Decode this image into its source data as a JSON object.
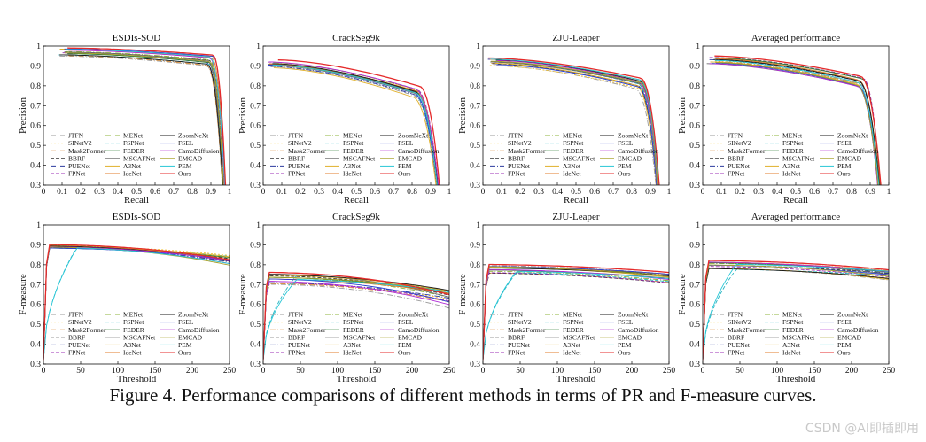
{
  "caption": "Figure 4. Performance comparisons of different methods in terms of PR and F-measure curves.",
  "watermark": "CSDN @AI即插即用",
  "methods": [
    {
      "name": "JTFN",
      "color": "#9a9a9a",
      "dash": "6,2,1,2"
    },
    {
      "name": "SINetV2",
      "color": "#f2c12e",
      "dash": "2,2"
    },
    {
      "name": "Mask2Former",
      "color": "#d98e3a",
      "dash": "6,2,1,2"
    },
    {
      "name": "BBRF",
      "color": "#333333",
      "dash": "4,2"
    },
    {
      "name": "PUENet",
      "color": "#2b3a9f",
      "dash": "6,2,1,2"
    },
    {
      "name": "FPNet",
      "color": "#9b2cb4",
      "dash": "4,2"
    },
    {
      "name": "MENet",
      "color": "#8db33a",
      "dash": "6,2,1,2"
    },
    {
      "name": "FSPNet",
      "color": "#26b5c2",
      "dash": "4,2"
    },
    {
      "name": "FEDER",
      "color": "#2e7d32",
      "dash": ""
    },
    {
      "name": "MSCAFNet",
      "color": "#6b6b6b",
      "dash": ""
    },
    {
      "name": "A3Net",
      "color": "#e0b02a",
      "dash": ""
    },
    {
      "name": "IdeNet",
      "color": "#e07b2a",
      "dash": ""
    },
    {
      "name": "ZoomNeXt",
      "color": "#1a1a1a",
      "dash": ""
    },
    {
      "name": "FSEL",
      "color": "#2b3fd1",
      "dash": ""
    },
    {
      "name": "CamoDiffusion",
      "color": "#b12bd6",
      "dash": ""
    },
    {
      "name": "EMCAD",
      "color": "#a8a12a",
      "dash": ""
    },
    {
      "name": "PEM",
      "color": "#27c6d6",
      "dash": ""
    },
    {
      "name": "Ours",
      "color": "#e52a2a",
      "dash": ""
    }
  ],
  "chart_data": [
    {
      "type": "line",
      "kind": "pr",
      "title": "ESDIs-SOD",
      "xlabel": "Recall",
      "ylabel": "Precision",
      "xlim": [
        0,
        1
      ],
      "ylim": [
        0.3,
        1
      ],
      "xticks": [
        "0",
        "0.1",
        "0.2",
        "0.3",
        "0.4",
        "0.5",
        "0.6",
        "0.7",
        "0.8",
        "0.9",
        "1"
      ],
      "yticks": [
        "0.3",
        "0.4",
        "0.5",
        "0.6",
        "0.7",
        "0.8",
        "0.9",
        "1"
      ],
      "p0": 0.99,
      "p1": 0.955,
      "knee": 0.9,
      "end": 0.98
    },
    {
      "type": "line",
      "kind": "pr",
      "title": "CrackSeg9k",
      "xlabel": "Recall",
      "ylabel": "Precision",
      "xlim": [
        0,
        1
      ],
      "ylim": [
        0.3,
        1
      ],
      "xticks": [
        "0",
        "0.1",
        "0.2",
        "0.3",
        "0.4",
        "0.5",
        "0.6",
        "0.7",
        "0.8",
        "0.9",
        "1"
      ],
      "yticks": [
        "0.3",
        "0.4",
        "0.5",
        "0.6",
        "0.7",
        "0.8",
        "0.9",
        "1"
      ],
      "p0": 0.93,
      "p1": 0.8,
      "knee": 0.82,
      "end": 0.95
    },
    {
      "type": "line",
      "kind": "pr",
      "title": "ZJU-Leaper",
      "xlabel": "Recall",
      "ylabel": "Precision",
      "xlim": [
        0,
        1
      ],
      "ylim": [
        0.3,
        1
      ],
      "xticks": [
        "0",
        "0.1",
        "0.2",
        "0.3",
        "0.4",
        "0.5",
        "0.6",
        "0.7",
        "0.8",
        "0.9",
        "1"
      ],
      "yticks": [
        "0.3",
        "0.4",
        "0.5",
        "0.6",
        "0.7",
        "0.8",
        "0.9",
        "1"
      ],
      "p0": 0.94,
      "p1": 0.84,
      "knee": 0.84,
      "end": 0.95
    },
    {
      "type": "line",
      "kind": "pr",
      "title": "Averaged performance",
      "xlabel": "Recall",
      "ylabel": "Precision",
      "xlim": [
        0,
        1
      ],
      "ylim": [
        0.3,
        1
      ],
      "xticks": [
        "0",
        "0.1",
        "0.2",
        "0.3",
        "0.4",
        "0.5",
        "0.6",
        "0.7",
        "0.8",
        "0.9",
        "1"
      ],
      "yticks": [
        "0.3",
        "0.4",
        "0.5",
        "0.6",
        "0.7",
        "0.8",
        "0.9",
        "1"
      ],
      "p0": 0.95,
      "p1": 0.85,
      "knee": 0.85,
      "end": 0.96
    },
    {
      "type": "line",
      "kind": "fm",
      "title": "ESDIs-SOD",
      "xlabel": "Threshold",
      "ylabel": "F-measure",
      "xlim": [
        0,
        250
      ],
      "ylim": [
        0.3,
        1
      ],
      "xticks": [
        "0",
        "50",
        "100",
        "150",
        "200",
        "250"
      ],
      "yticks": [
        "0.3",
        "0.4",
        "0.5",
        "0.6",
        "0.7",
        "0.8",
        "0.9",
        "1"
      ],
      "plateau": 0.89,
      "spread": 0.02,
      "endDrop": 0.06
    },
    {
      "type": "line",
      "kind": "fm",
      "title": "CrackSeg9k",
      "xlabel": "Threshold",
      "ylabel": "F-measure",
      "xlim": [
        0,
        250
      ],
      "ylim": [
        0.3,
        1
      ],
      "xticks": [
        "0",
        "50",
        "100",
        "150",
        "200",
        "250"
      ],
      "yticks": [
        "0.3",
        "0.4",
        "0.5",
        "0.6",
        "0.7",
        "0.8",
        "0.9",
        "1"
      ],
      "plateau": 0.75,
      "spread": 0.07,
      "endDrop": 0.08
    },
    {
      "type": "line",
      "kind": "fm",
      "title": "ZJU-Leaper",
      "xlabel": "Threshold",
      "ylabel": "F-measure",
      "xlim": [
        0,
        250
      ],
      "ylim": [
        0.3,
        1
      ],
      "xticks": [
        "0",
        "50",
        "100",
        "150",
        "200",
        "250"
      ],
      "yticks": [
        "0.3",
        "0.4",
        "0.5",
        "0.6",
        "0.7",
        "0.8",
        "0.9",
        "1"
      ],
      "plateau": 0.79,
      "spread": 0.05,
      "endDrop": 0.03
    },
    {
      "type": "line",
      "kind": "fm",
      "title": "Averaged performance",
      "xlabel": "Threshold",
      "ylabel": "F-measure",
      "xlim": [
        0,
        250
      ],
      "ylim": [
        0.3,
        1
      ],
      "xticks": [
        "0",
        "50",
        "100",
        "150",
        "200",
        "250"
      ],
      "yticks": [
        "0.3",
        "0.4",
        "0.5",
        "0.6",
        "0.7",
        "0.8",
        "0.9",
        "1"
      ],
      "plateau": 0.81,
      "spread": 0.05,
      "endDrop": 0.04
    }
  ]
}
